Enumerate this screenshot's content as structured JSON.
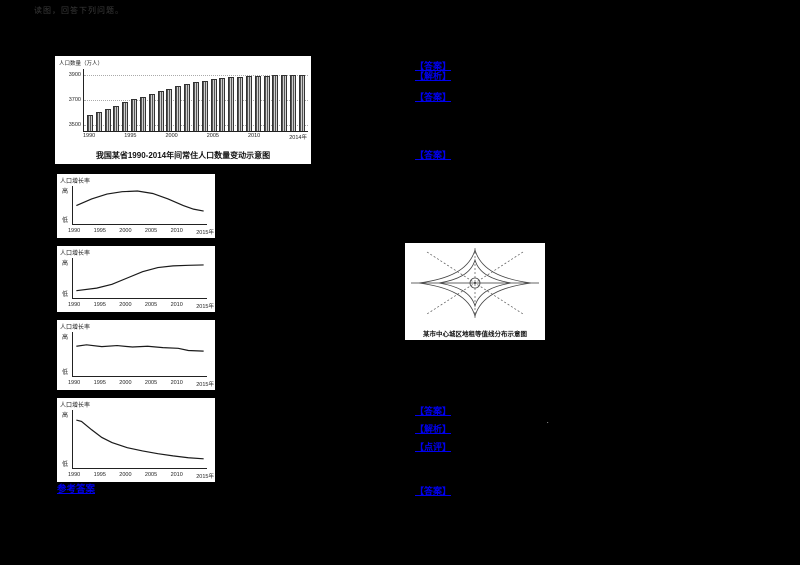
{
  "page": {
    "background": "#000000"
  },
  "header": {
    "faint_label": "读图，回答下列问题。"
  },
  "misc": {
    "stray_mark": "．"
  },
  "links": {
    "l1": "【答案】",
    "l2": "【解析】",
    "l3": "【答案】",
    "l4": "【答案】",
    "l5": "【答案】",
    "l6": "【解析】",
    "l7": "【点评】",
    "l8": "【答案】",
    "l9": "参考答案"
  },
  "figures": {
    "rent_map": {
      "caption": "某市中心城区地租等值线分布示意图"
    }
  },
  "chart_data": [
    {
      "id": "population-bars",
      "type": "bar",
      "title": "我国某省1990-2014年间常住人口数量变动示意图",
      "ylabel": "人口数量（万人）",
      "categories": [
        1990,
        1991,
        1992,
        1993,
        1994,
        1995,
        1996,
        1997,
        1998,
        1999,
        2000,
        2001,
        2002,
        2003,
        2004,
        2005,
        2006,
        2007,
        2008,
        2009,
        2010,
        2011,
        2012,
        2013,
        2014
      ],
      "values": [
        3580,
        3605,
        3630,
        3655,
        3680,
        3705,
        3728,
        3750,
        3772,
        3792,
        3810,
        3828,
        3843,
        3856,
        3867,
        3876,
        3883,
        3888,
        3892,
        3895,
        3897,
        3898,
        3899,
        3900,
        3900
      ],
      "yticks": [
        3900,
        3700,
        3500
      ],
      "ylim": [
        3450,
        3950
      ],
      "xticks": [
        "1990",
        "1995",
        "2000",
        "2005",
        "2010",
        "2014年"
      ],
      "grid": true,
      "legend": "none"
    },
    {
      "id": "growth-option-a",
      "type": "line",
      "ylabel": "人口增长率",
      "yticks": [
        "高",
        "低"
      ],
      "xticks": [
        "1990",
        "1995",
        "2000",
        "2005",
        "2010",
        "2015年"
      ],
      "xlim": [
        1990,
        2015
      ],
      "points": [
        [
          1990,
          0.5
        ],
        [
          1993,
          0.72
        ],
        [
          1996,
          0.88
        ],
        [
          1999,
          0.96
        ],
        [
          2002,
          0.98
        ],
        [
          2005,
          0.9
        ],
        [
          2008,
          0.72
        ],
        [
          2011,
          0.5
        ],
        [
          2013,
          0.38
        ],
        [
          2015,
          0.32
        ]
      ]
    },
    {
      "id": "growth-option-b",
      "type": "line",
      "ylabel": "人口增长率",
      "yticks": [
        "高",
        "低"
      ],
      "xticks": [
        "1990",
        "1995",
        "2000",
        "2005",
        "2010",
        "2015年"
      ],
      "xlim": [
        1990,
        2015
      ],
      "points": [
        [
          1990,
          0.12
        ],
        [
          1994,
          0.2
        ],
        [
          1997,
          0.32
        ],
        [
          2000,
          0.52
        ],
        [
          2003,
          0.72
        ],
        [
          2006,
          0.85
        ],
        [
          2009,
          0.9
        ],
        [
          2012,
          0.92
        ],
        [
          2015,
          0.93
        ]
      ]
    },
    {
      "id": "growth-option-c",
      "type": "line",
      "ylabel": "人口增长率",
      "yticks": [
        "高",
        "低"
      ],
      "xticks": [
        "1990",
        "1995",
        "2000",
        "2005",
        "2010",
        "2015年"
      ],
      "xlim": [
        1990,
        2015
      ],
      "points": [
        [
          1990,
          0.74
        ],
        [
          1992,
          0.78
        ],
        [
          1995,
          0.73
        ],
        [
          1998,
          0.76
        ],
        [
          2001,
          0.72
        ],
        [
          2004,
          0.74
        ],
        [
          2007,
          0.7
        ],
        [
          2010,
          0.68
        ],
        [
          2012,
          0.62
        ],
        [
          2015,
          0.6
        ]
      ]
    },
    {
      "id": "growth-option-d",
      "type": "line",
      "ylabel": "人口增长率",
      "yticks": [
        "高",
        "低"
      ],
      "xticks": [
        "1990",
        "1995",
        "2000",
        "2005",
        "2010",
        "2015年"
      ],
      "xlim": [
        1990,
        2015
      ],
      "points": [
        [
          1990,
          0.93
        ],
        [
          1991,
          0.9
        ],
        [
          1993,
          0.72
        ],
        [
          1995,
          0.55
        ],
        [
          1997,
          0.44
        ],
        [
          2000,
          0.33
        ],
        [
          2003,
          0.26
        ],
        [
          2006,
          0.2
        ],
        [
          2009,
          0.15
        ],
        [
          2012,
          0.11
        ],
        [
          2015,
          0.09
        ]
      ]
    }
  ]
}
